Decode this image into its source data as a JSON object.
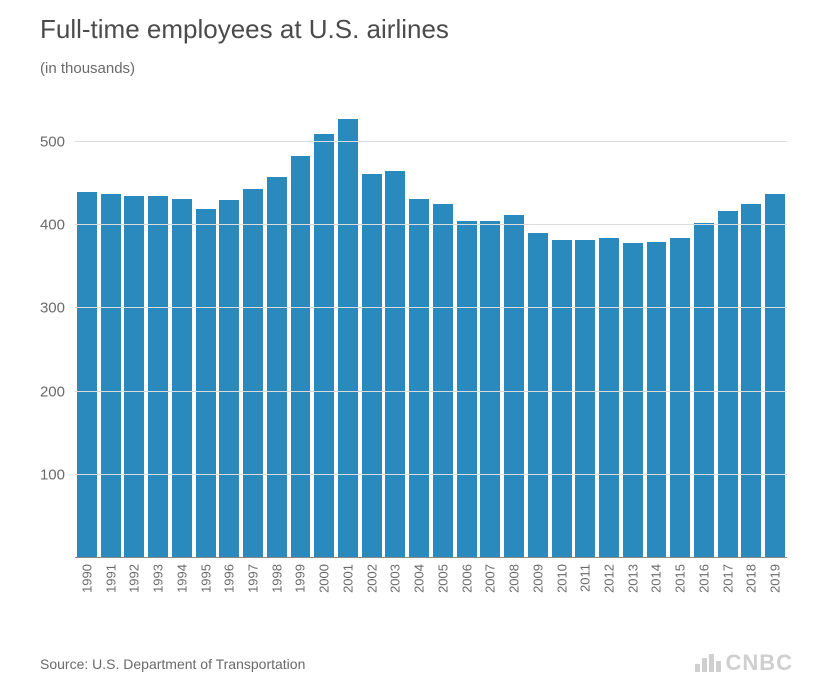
{
  "chart": {
    "type": "bar",
    "title": "Full-time employees at U.S. airlines",
    "subtitle": "(in thousands)",
    "source": "Source: U.S. Department of Transportation",
    "logo_text": "CNBC",
    "title_fontsize": 26,
    "subtitle_fontsize": 15,
    "label_fontsize": 15,
    "xlabel_fontsize": 13,
    "title_color": "#4b4b4b",
    "text_color": "#6a6a6a",
    "background_color": "#ffffff",
    "grid_color": "#dcdcdc",
    "axis_color": "#8a8a8a",
    "bar_color": "#2a8abd",
    "logo_color": "#cfcfcf",
    "ylim": [
      0,
      560
    ],
    "yticks": [
      100,
      200,
      300,
      400,
      500
    ],
    "bar_width_ratio": 0.84,
    "years": [
      "1990",
      "1991",
      "1992",
      "1993",
      "1994",
      "1995",
      "1996",
      "1997",
      "1998",
      "1999",
      "2000",
      "2001",
      "2002",
      "2003",
      "2004",
      "2005",
      "2006",
      "2007",
      "2008",
      "2009",
      "2010",
      "2011",
      "2012",
      "2013",
      "2014",
      "2015",
      "2016",
      "2017",
      "2018",
      "2019"
    ],
    "values": [
      440,
      438,
      435,
      435,
      432,
      420,
      430,
      443,
      458,
      483,
      510,
      528,
      462,
      465,
      432,
      425,
      405,
      405,
      412,
      390,
      382,
      382,
      385,
      378,
      380,
      385,
      402,
      417,
      425,
      438
    ]
  }
}
